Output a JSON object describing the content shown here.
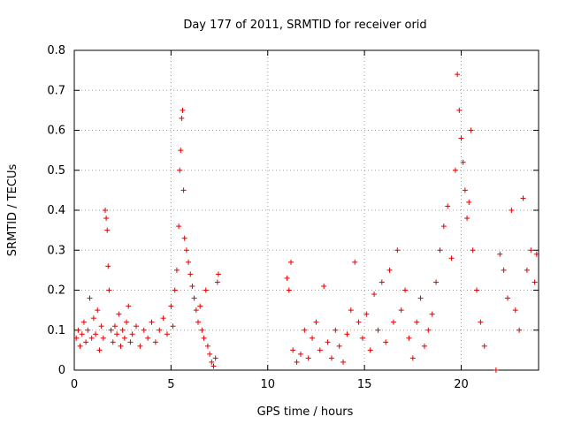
{
  "chart_data": {
    "type": "scatter",
    "title": "Day 177 of 2011, SRMTID for receiver orid",
    "xlabel": "GPS time / hours",
    "ylabel": "SRMTID / TECUs",
    "xlim": [
      0,
      24
    ],
    "ylim": [
      0,
      0.8
    ],
    "xticks": [
      0,
      5,
      10,
      15,
      20
    ],
    "xtick_labels": [
      "0",
      "5",
      "10",
      "15",
      "20"
    ],
    "yticks": [
      0,
      0.1,
      0.2,
      0.3,
      0.4,
      0.5,
      0.6,
      0.7,
      0.8
    ],
    "ytick_labels": [
      "0",
      "0.1",
      "0.2",
      "0.3",
      "0.4",
      "0.5",
      "0.6",
      "0.7",
      "0.8"
    ],
    "grid": true,
    "marker": "+",
    "color": "#e00000",
    "series": [
      {
        "name": "SRMTID",
        "points": [
          [
            0.1,
            0.08
          ],
          [
            0.2,
            0.1
          ],
          [
            0.3,
            0.06
          ],
          [
            0.4,
            0.09
          ],
          [
            0.5,
            0.12
          ],
          [
            0.6,
            0.07
          ],
          [
            0.7,
            0.1
          ],
          [
            0.8,
            0.18
          ],
          [
            0.9,
            0.08
          ],
          [
            1.0,
            0.13
          ],
          [
            1.1,
            0.09
          ],
          [
            1.2,
            0.15
          ],
          [
            1.3,
            0.05
          ],
          [
            1.4,
            0.11
          ],
          [
            1.5,
            0.08
          ],
          [
            1.6,
            0.4
          ],
          [
            1.65,
            0.38
          ],
          [
            1.7,
            0.35
          ],
          [
            1.75,
            0.26
          ],
          [
            1.8,
            0.2
          ],
          [
            1.9,
            0.1
          ],
          [
            2.0,
            0.07
          ],
          [
            2.1,
            0.11
          ],
          [
            2.2,
            0.09
          ],
          [
            2.3,
            0.14
          ],
          [
            2.4,
            0.06
          ],
          [
            2.5,
            0.1
          ],
          [
            2.6,
            0.08
          ],
          [
            2.7,
            0.12
          ],
          [
            2.8,
            0.16
          ],
          [
            2.9,
            0.07
          ],
          [
            3.0,
            0.09
          ],
          [
            3.2,
            0.11
          ],
          [
            3.4,
            0.06
          ],
          [
            3.6,
            0.1
          ],
          [
            3.8,
            0.08
          ],
          [
            4.0,
            0.12
          ],
          [
            4.2,
            0.07
          ],
          [
            4.4,
            0.1
          ],
          [
            4.6,
            0.13
          ],
          [
            4.8,
            0.09
          ],
          [
            5.0,
            0.16
          ],
          [
            5.1,
            0.11
          ],
          [
            5.2,
            0.2
          ],
          [
            5.3,
            0.25
          ],
          [
            5.4,
            0.36
          ],
          [
            5.45,
            0.5
          ],
          [
            5.5,
            0.55
          ],
          [
            5.55,
            0.63
          ],
          [
            5.6,
            0.65
          ],
          [
            5.65,
            0.45
          ],
          [
            5.7,
            0.33
          ],
          [
            5.8,
            0.3
          ],
          [
            5.9,
            0.27
          ],
          [
            6.0,
            0.24
          ],
          [
            6.1,
            0.21
          ],
          [
            6.2,
            0.18
          ],
          [
            6.3,
            0.15
          ],
          [
            6.4,
            0.12
          ],
          [
            6.5,
            0.16
          ],
          [
            6.6,
            0.1
          ],
          [
            6.7,
            0.08
          ],
          [
            6.8,
            0.2
          ],
          [
            6.9,
            0.06
          ],
          [
            7.0,
            0.04
          ],
          [
            7.1,
            0.02
          ],
          [
            7.2,
            0.01
          ],
          [
            7.3,
            0.03
          ],
          [
            7.4,
            0.22
          ],
          [
            7.45,
            0.24
          ],
          [
            11.0,
            0.23
          ],
          [
            11.1,
            0.2
          ],
          [
            11.2,
            0.27
          ],
          [
            11.3,
            0.05
          ],
          [
            11.5,
            0.02
          ],
          [
            11.7,
            0.04
          ],
          [
            11.9,
            0.1
          ],
          [
            12.1,
            0.03
          ],
          [
            12.3,
            0.08
          ],
          [
            12.5,
            0.12
          ],
          [
            12.7,
            0.05
          ],
          [
            12.9,
            0.21
          ],
          [
            13.1,
            0.07
          ],
          [
            13.3,
            0.03
          ],
          [
            13.5,
            0.1
          ],
          [
            13.7,
            0.06
          ],
          [
            13.9,
            0.02
          ],
          [
            14.1,
            0.09
          ],
          [
            14.3,
            0.15
          ],
          [
            14.5,
            0.27
          ],
          [
            14.7,
            0.12
          ],
          [
            14.9,
            0.08
          ],
          [
            15.1,
            0.14
          ],
          [
            15.3,
            0.05
          ],
          [
            15.5,
            0.19
          ],
          [
            15.7,
            0.1
          ],
          [
            15.9,
            0.22
          ],
          [
            16.1,
            0.07
          ],
          [
            16.3,
            0.25
          ],
          [
            16.5,
            0.12
          ],
          [
            16.7,
            0.3
          ],
          [
            16.9,
            0.15
          ],
          [
            17.1,
            0.2
          ],
          [
            17.3,
            0.08
          ],
          [
            17.5,
            0.03
          ],
          [
            17.7,
            0.12
          ],
          [
            17.9,
            0.18
          ],
          [
            18.1,
            0.06
          ],
          [
            18.3,
            0.1
          ],
          [
            18.5,
            0.14
          ],
          [
            18.7,
            0.22
          ],
          [
            18.9,
            0.3
          ],
          [
            19.1,
            0.36
          ],
          [
            19.3,
            0.41
          ],
          [
            19.5,
            0.28
          ],
          [
            19.7,
            0.5
          ],
          [
            19.8,
            0.74
          ],
          [
            19.9,
            0.65
          ],
          [
            20.0,
            0.58
          ],
          [
            20.1,
            0.52
          ],
          [
            20.2,
            0.45
          ],
          [
            20.3,
            0.38
          ],
          [
            20.4,
            0.42
          ],
          [
            20.5,
            0.6
          ],
          [
            20.6,
            0.3
          ],
          [
            20.8,
            0.2
          ],
          [
            21.0,
            0.12
          ],
          [
            21.2,
            0.06
          ],
          [
            21.8,
            0.0
          ],
          [
            22.0,
            0.29
          ],
          [
            22.2,
            0.25
          ],
          [
            22.4,
            0.18
          ],
          [
            22.6,
            0.4
          ],
          [
            22.8,
            0.15
          ],
          [
            23.0,
            0.1
          ],
          [
            23.2,
            0.43
          ],
          [
            23.4,
            0.25
          ],
          [
            23.6,
            0.3
          ],
          [
            23.8,
            0.22
          ],
          [
            23.9,
            0.29
          ]
        ]
      }
    ]
  }
}
